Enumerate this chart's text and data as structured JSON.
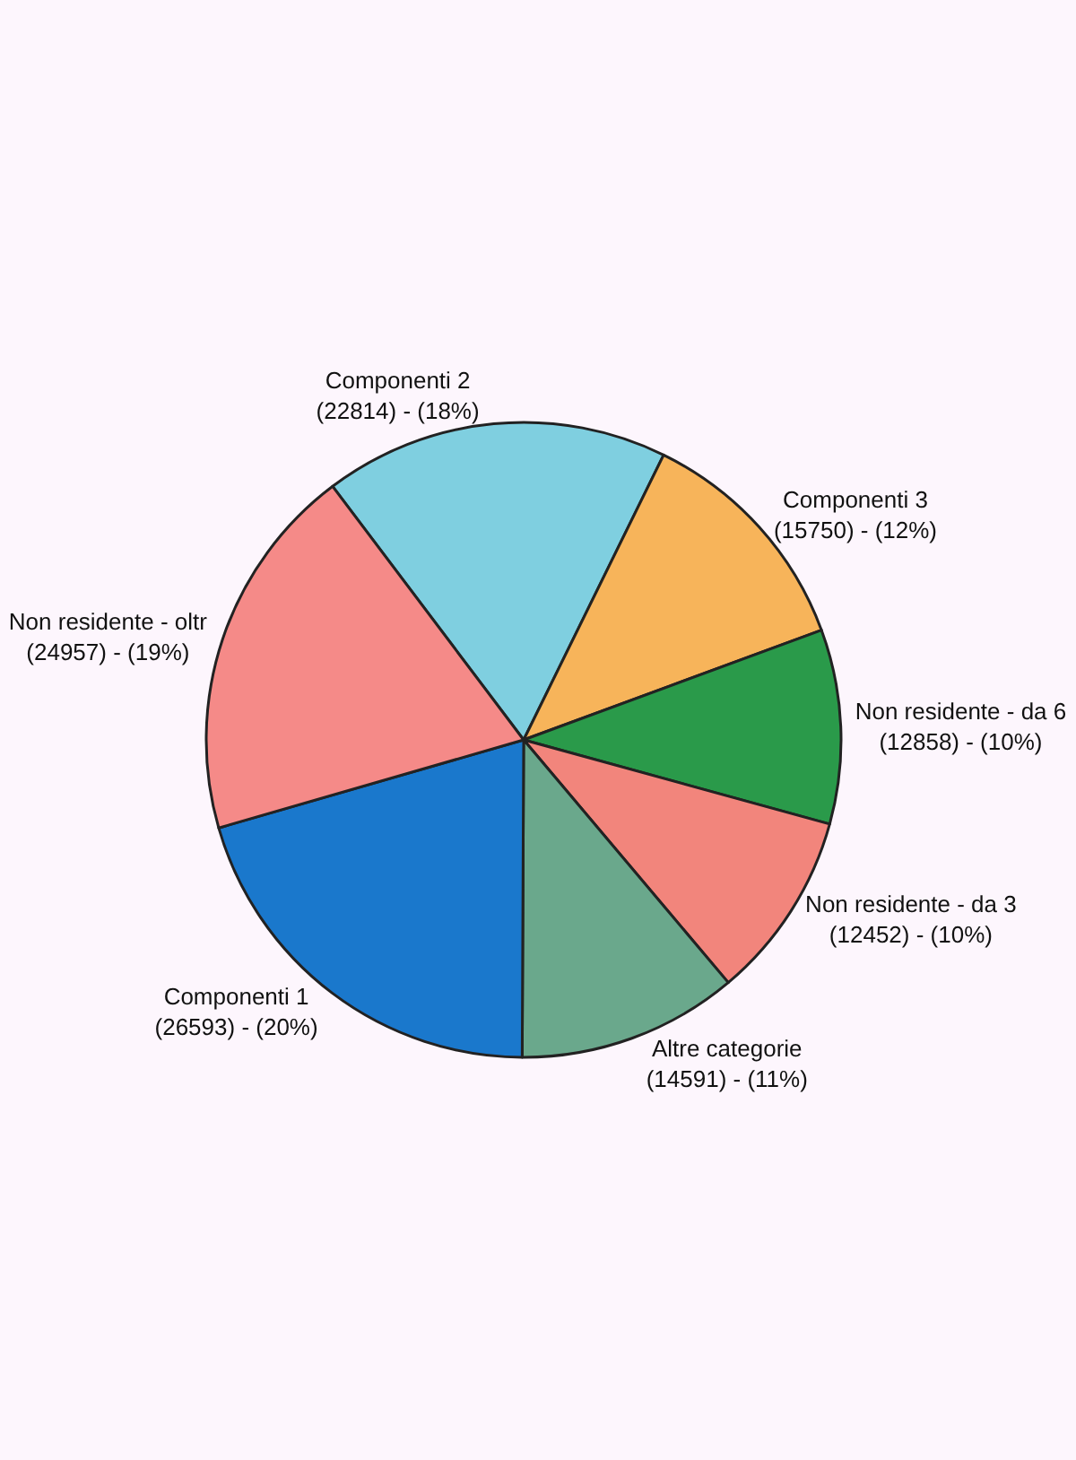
{
  "chart_data": {
    "type": "pie",
    "categories": [
      "Componenti 2",
      "Componenti 3",
      "Non residente - da 6",
      "Non residente - da 3",
      "Altre categorie",
      "Componenti 1",
      "Non residente - oltr"
    ],
    "values": [
      22814,
      15750,
      12858,
      12452,
      14591,
      26593,
      24957
    ],
    "value_labels": [
      "(22814) - (18%)",
      "(15750) - (12%)",
      "(12858) - (10%)",
      "(12452) - (10%)",
      "(14591) - (11%)",
      "(26593) - (20%)",
      "(24957) - (19%)"
    ],
    "colors": [
      "#7fcfe0",
      "#f7b45a",
      "#2a9a4a",
      "#f2857c",
      "#6aa88c",
      "#1a78cc",
      "#f58a88"
    ]
  }
}
